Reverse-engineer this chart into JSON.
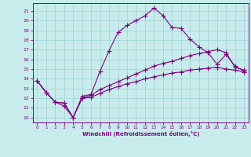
{
  "xlabel": "Windchill (Refroidissement éolien,°C)",
  "bg_color": "#c8ecec",
  "grid_color": "#a8d8d8",
  "line_color": "#800080",
  "xlim": [
    -0.5,
    23.5
  ],
  "ylim": [
    9.5,
    21.8
  ],
  "xticks": [
    0,
    1,
    2,
    3,
    4,
    5,
    6,
    7,
    8,
    9,
    10,
    11,
    12,
    13,
    14,
    15,
    16,
    17,
    18,
    19,
    20,
    21,
    22,
    23
  ],
  "yticks": [
    10,
    11,
    12,
    13,
    14,
    15,
    16,
    17,
    18,
    19,
    20,
    21
  ],
  "series1_x": [
    0,
    1,
    2,
    3,
    4,
    5,
    6,
    7,
    8,
    9,
    10,
    11,
    12,
    13,
    14,
    15,
    16,
    17,
    18,
    19,
    20,
    21,
    22,
    23
  ],
  "series1_y": [
    13.8,
    12.6,
    11.6,
    11.2,
    10.0,
    12.2,
    12.4,
    14.8,
    16.9,
    18.8,
    19.5,
    20.0,
    20.5,
    21.3,
    20.5,
    19.3,
    19.2,
    18.1,
    17.3,
    16.7,
    15.5,
    16.5,
    15.3,
    14.8
  ],
  "series2_x": [
    0,
    1,
    2,
    3,
    4,
    5,
    6,
    7,
    8,
    9,
    10,
    11,
    12,
    13,
    14,
    15,
    16,
    17,
    18,
    19,
    20,
    21,
    22,
    23
  ],
  "series2_y": [
    13.8,
    12.6,
    11.6,
    11.5,
    10.0,
    12.0,
    12.3,
    12.9,
    13.3,
    13.7,
    14.1,
    14.5,
    14.9,
    15.3,
    15.6,
    15.8,
    16.1,
    16.4,
    16.6,
    16.8,
    17.0,
    16.7,
    15.2,
    14.9
  ],
  "series3_x": [
    0,
    1,
    2,
    3,
    4,
    5,
    6,
    7,
    8,
    9,
    10,
    11,
    12,
    13,
    14,
    15,
    16,
    17,
    18,
    19,
    20,
    21,
    22,
    23
  ],
  "series3_y": [
    13.8,
    12.6,
    11.6,
    11.5,
    10.0,
    12.0,
    12.1,
    12.5,
    12.9,
    13.2,
    13.5,
    13.7,
    14.0,
    14.2,
    14.4,
    14.6,
    14.7,
    14.9,
    15.0,
    15.1,
    15.2,
    15.0,
    14.9,
    14.7
  ]
}
